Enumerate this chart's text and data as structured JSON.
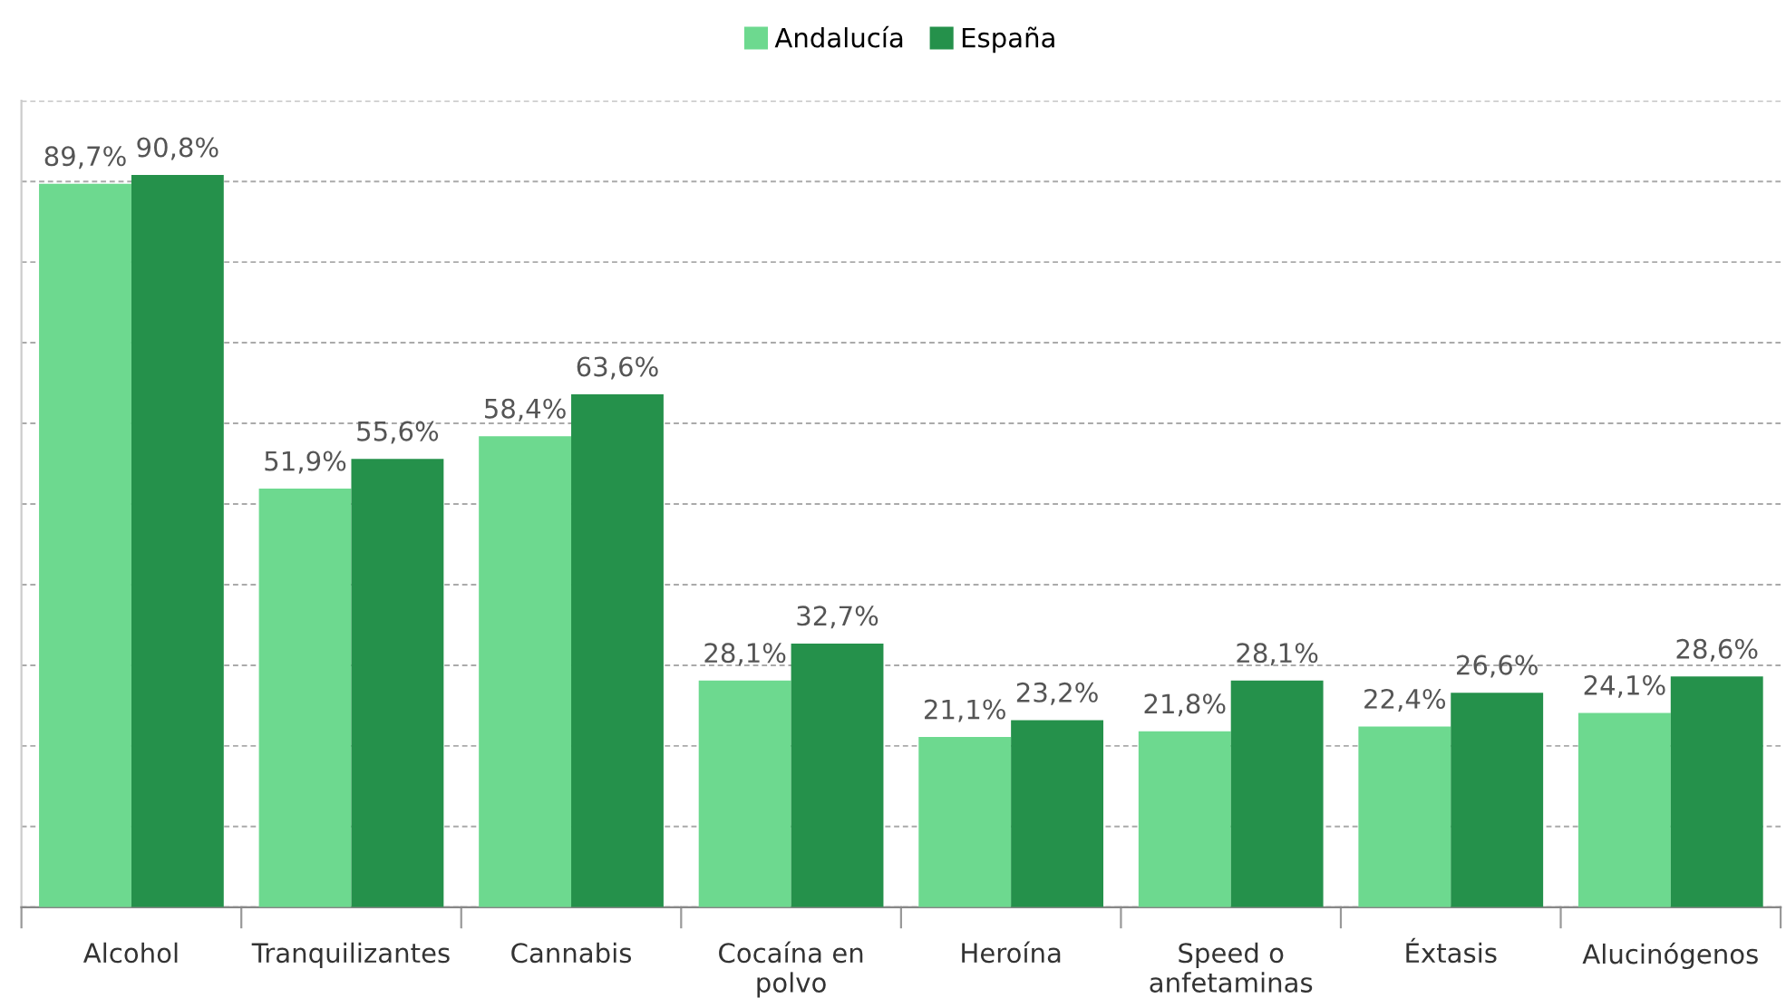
{
  "chart_data": {
    "type": "bar",
    "categories": [
      "Alcohol",
      "Tranquilizantes",
      "Cannabis",
      "Cocaína en\npolvo",
      "Heroína",
      "Speed o\nanfetaminas",
      "Éxtasis",
      "Alucinógenos"
    ],
    "series": [
      {
        "name": "Andalucía",
        "color": "#6dd98f",
        "values": [
          89.7,
          51.9,
          58.4,
          28.1,
          21.1,
          21.8,
          22.4,
          24.1
        ],
        "value_labels": [
          "89,7%",
          "51,9%",
          "58,4%",
          "28,1%",
          "21,1%",
          "21,8%",
          "22,4%",
          "24,1%"
        ]
      },
      {
        "name": "España",
        "color": "#25914b",
        "values": [
          90.8,
          55.6,
          63.6,
          32.7,
          23.2,
          28.1,
          26.6,
          28.6
        ],
        "value_labels": [
          "90,8%",
          "55,6%",
          "63,6%",
          "32,7%",
          "23,2%",
          "28,1%",
          "26,6%",
          "28,6%"
        ]
      }
    ],
    "ylim": [
      0,
      100
    ],
    "yticks": [
      {
        "value": 0,
        "label": null
      },
      {
        "value": 10,
        "label": null
      },
      {
        "value": 20,
        "label": null
      },
      {
        "value": 30,
        "label": null
      },
      {
        "value": 40,
        "label": null
      },
      {
        "value": 50,
        "label": null
      },
      {
        "value": 60,
        "label": null
      },
      {
        "value": 70,
        "label": null
      },
      {
        "value": 80,
        "label": null
      },
      {
        "value": 90,
        "label": null
      },
      {
        "value": 100,
        "label": null
      }
    ],
    "tick_labels": "x",
    "grid": "y",
    "legend": "top"
  }
}
